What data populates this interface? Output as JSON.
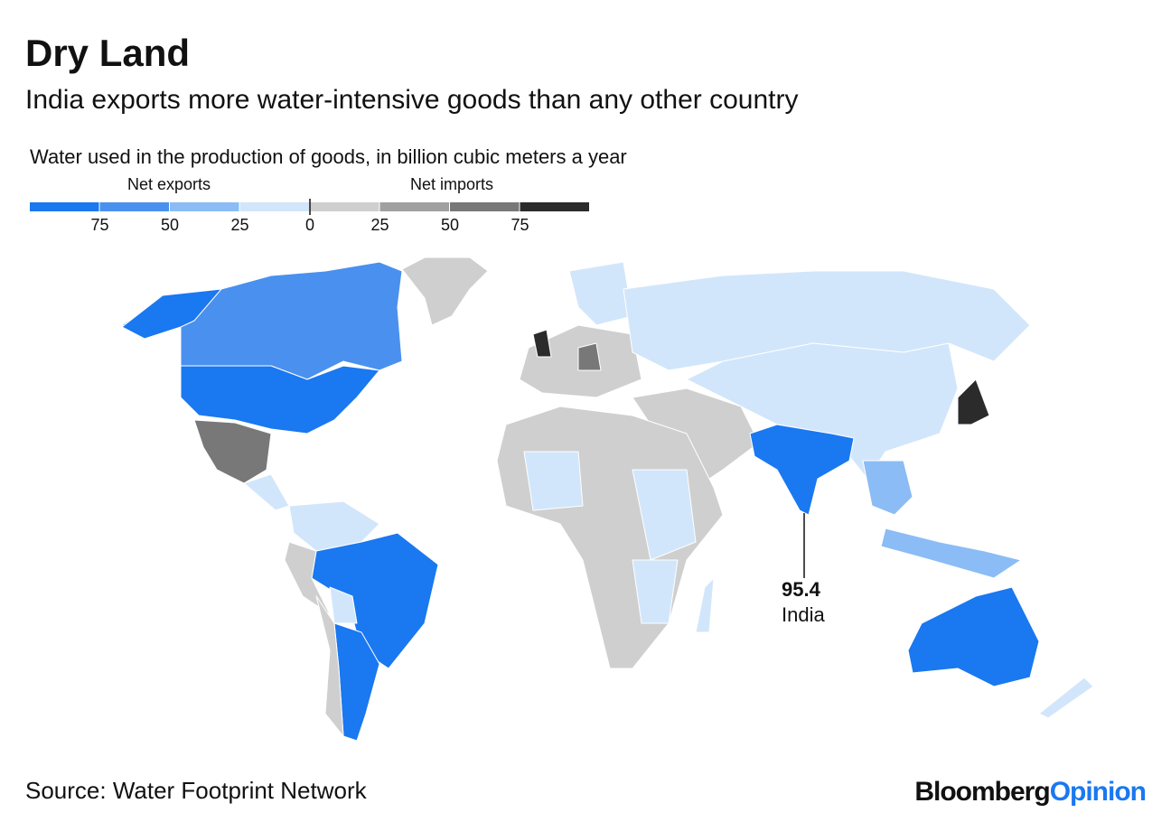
{
  "title": "Dry Land",
  "subtitle": "India exports more water-intensive goods than any other country",
  "legend": {
    "title": "Water used in the production of goods, in billion cubic meters a year",
    "export_label": "Net exports",
    "import_label": "Net imports",
    "range": [
      -100,
      100
    ],
    "bins": [
      -100,
      -75,
      -50,
      -25,
      0,
      25,
      50,
      75,
      100
    ],
    "colors": [
      "#1a78f0",
      "#4a90ee",
      "#8bbcf5",
      "#d2e6fb",
      "#cfcfcf",
      "#a0a0a0",
      "#787878",
      "#2b2b2b"
    ],
    "ticks": [
      {
        "value": -75,
        "label": "75"
      },
      {
        "value": -50,
        "label": "50"
      },
      {
        "value": -25,
        "label": "25"
      },
      0,
      25,
      50,
      75
    ]
  },
  "annotation": {
    "value": 95.4,
    "label": "India"
  },
  "source": "Source: Water Footprint Network",
  "logo": {
    "brand": "Bloomberg",
    "section": "Opinion"
  }
}
